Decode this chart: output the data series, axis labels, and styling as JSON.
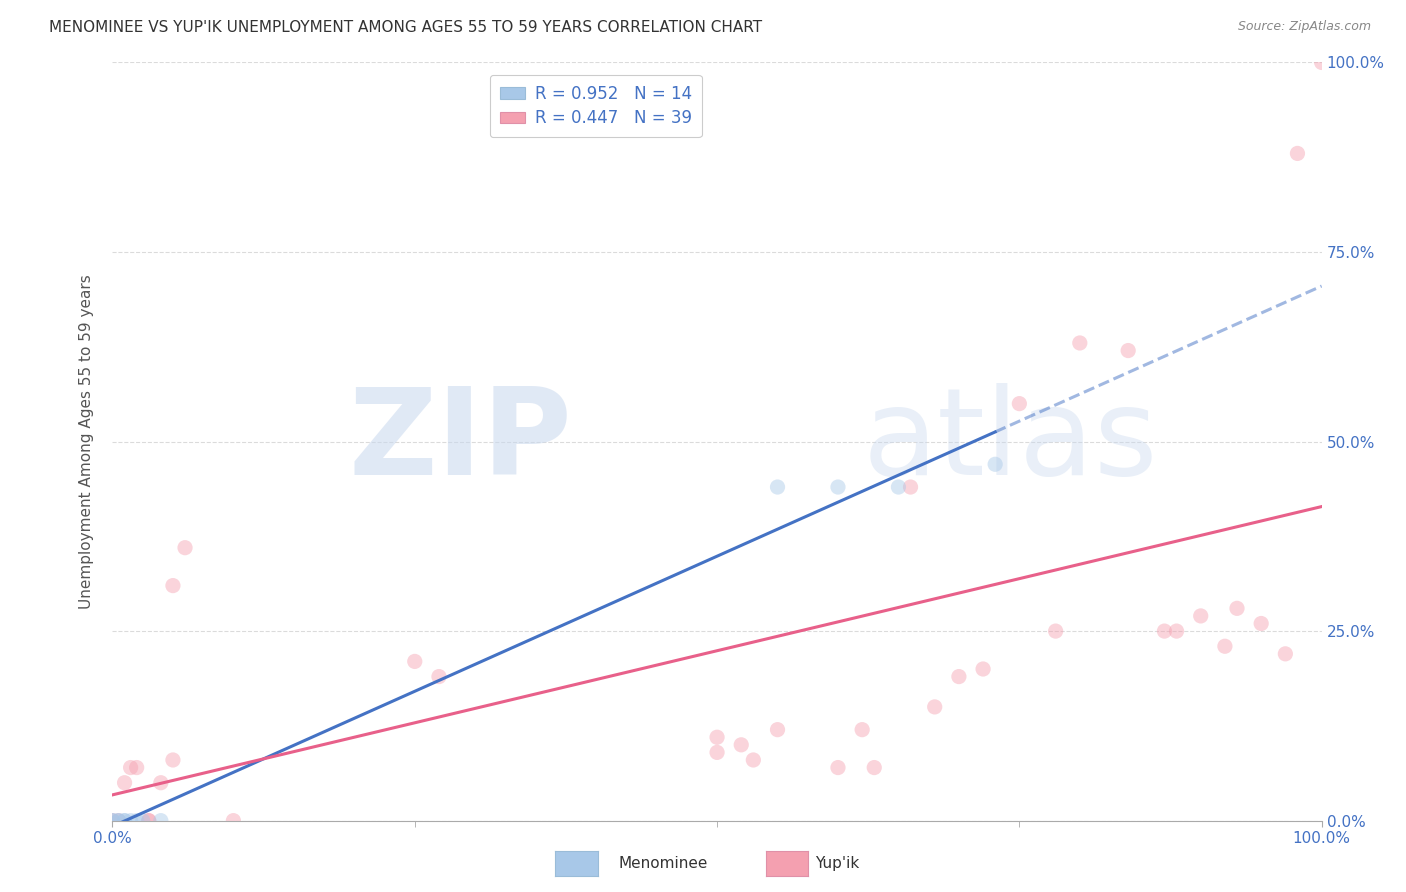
{
  "title": "MENOMINEE VS YUP'IK UNEMPLOYMENT AMONG AGES 55 TO 59 YEARS CORRELATION CHART",
  "source": "Source: ZipAtlas.com",
  "ylabel": "Unemployment Among Ages 55 to 59 years",
  "xlim": [
    0,
    1
  ],
  "ylim": [
    0,
    1
  ],
  "ytick_labels": [
    "0.0%",
    "25.0%",
    "50.0%",
    "75.0%",
    "100.0%"
  ],
  "ytick_positions": [
    0,
    0.25,
    0.5,
    0.75,
    1.0
  ],
  "xtick_labels": [
    "0.0%",
    "100.0%"
  ],
  "xtick_positions": [
    0.0,
    1.0
  ],
  "menominee_dot_color": "#A8C8E8",
  "yupik_dot_color": "#F4A0B0",
  "menominee_line_color": "#4472C4",
  "yupik_line_color": "#E8608A",
  "R_menominee": 0.952,
  "N_menominee": 14,
  "R_yupik": 0.447,
  "N_yupik": 39,
  "menominee_data": [
    [
      0.0,
      0.0
    ],
    [
      0.0,
      0.0
    ],
    [
      0.005,
      0.0
    ],
    [
      0.005,
      0.0
    ],
    [
      0.01,
      0.0
    ],
    [
      0.01,
      0.0
    ],
    [
      0.015,
      0.0
    ],
    [
      0.02,
      0.0
    ],
    [
      0.025,
      0.0
    ],
    [
      0.04,
      0.0
    ],
    [
      0.55,
      0.44
    ],
    [
      0.6,
      0.44
    ],
    [
      0.65,
      0.44
    ],
    [
      0.73,
      0.47
    ]
  ],
  "yupik_data": [
    [
      0.0,
      0.0
    ],
    [
      0.005,
      0.0
    ],
    [
      0.01,
      0.05
    ],
    [
      0.015,
      0.07
    ],
    [
      0.02,
      0.07
    ],
    [
      0.03,
      0.0
    ],
    [
      0.03,
      0.0
    ],
    [
      0.04,
      0.05
    ],
    [
      0.05,
      0.08
    ],
    [
      0.05,
      0.31
    ],
    [
      0.06,
      0.36
    ],
    [
      0.1,
      0.0
    ],
    [
      0.25,
      0.21
    ],
    [
      0.27,
      0.19
    ],
    [
      0.5,
      0.09
    ],
    [
      0.5,
      0.11
    ],
    [
      0.52,
      0.1
    ],
    [
      0.53,
      0.08
    ],
    [
      0.55,
      0.12
    ],
    [
      0.6,
      0.07
    ],
    [
      0.62,
      0.12
    ],
    [
      0.63,
      0.07
    ],
    [
      0.66,
      0.44
    ],
    [
      0.68,
      0.15
    ],
    [
      0.7,
      0.19
    ],
    [
      0.72,
      0.2
    ],
    [
      0.75,
      0.55
    ],
    [
      0.78,
      0.25
    ],
    [
      0.8,
      0.63
    ],
    [
      0.84,
      0.62
    ],
    [
      0.87,
      0.25
    ],
    [
      0.88,
      0.25
    ],
    [
      0.9,
      0.27
    ],
    [
      0.92,
      0.23
    ],
    [
      0.93,
      0.28
    ],
    [
      0.95,
      0.26
    ],
    [
      0.97,
      0.22
    ],
    [
      0.98,
      0.88
    ],
    [
      1.0,
      1.0
    ]
  ],
  "watermark": "ZIPatlas",
  "background_color": "#FFFFFF",
  "grid_color": "#CCCCCC",
  "title_color": "#333333",
  "tick_label_color": "#4472C4",
  "legend_text_color": "#4472C4",
  "marker_size": 120,
  "marker_alpha": 0.45,
  "line_width": 2.2
}
